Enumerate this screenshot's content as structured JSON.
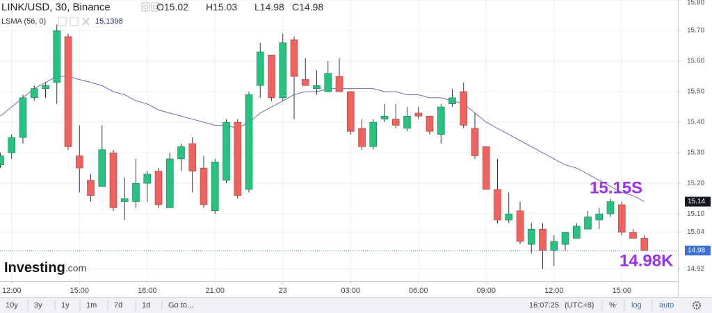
{
  "chart_data": {
    "type": "candlestick",
    "title": "LINK/USD, 30, Binance",
    "ohlc": [
      {
        "label": "O",
        "value": 15.02
      },
      {
        "label": "H",
        "value": 15.03
      },
      {
        "label": "L",
        "value": 14.98
      },
      {
        "label": "C",
        "value": 14.98
      }
    ],
    "categories": [
      null,
      "12:00",
      null,
      null,
      null,
      null,
      null,
      "15:00",
      null,
      null,
      null,
      null,
      null,
      "18:00",
      null,
      null,
      null,
      null,
      null,
      "21:00",
      null,
      null,
      null,
      null,
      null,
      "23",
      null,
      null,
      null,
      null,
      null,
      "03:00",
      null,
      null,
      null,
      null,
      null,
      "06:00",
      null,
      null,
      null,
      null,
      null,
      "09:00",
      null,
      null,
      null,
      null,
      null,
      "12:00",
      null,
      null,
      null,
      null,
      null,
      "15:00",
      null,
      null
    ],
    "open": [
      15.26,
      15.3,
      15.35,
      15.48,
      15.51,
      15.53,
      15.68,
      15.29,
      15.21,
      15.19,
      15.3,
      15.14,
      15.14,
      15.2,
      15.24,
      15.12,
      15.28,
      15.33,
      15.25,
      15.11,
      15.21,
      15.4,
      15.18,
      15.52,
      15.62,
      15.48,
      15.67,
      15.54,
      15.51,
      15.5,
      15.55,
      15.5,
      15.38,
      15.32,
      15.41,
      15.41,
      15.38,
      15.43,
      15.42,
      15.36,
      15.46,
      15.5,
      15.38,
      15.32,
      15.18,
      15.08,
      15.11,
      15.0,
      15.05,
      14.98,
      15.0,
      15.02,
      15.05,
      15.08,
      15.1,
      15.13,
      15.04,
      15.02
    ],
    "high": [
      15.3,
      15.36,
      15.49,
      15.52,
      15.53,
      15.72,
      15.69,
      15.39,
      15.23,
      15.39,
      15.31,
      15.22,
      15.28,
      15.24,
      15.25,
      15.3,
      15.33,
      15.35,
      15.29,
      15.28,
      15.41,
      15.41,
      15.5,
      15.66,
      15.62,
      15.69,
      15.68,
      15.61,
      15.57,
      15.6,
      15.61,
      15.5,
      15.41,
      15.41,
      15.46,
      15.46,
      15.45,
      15.45,
      15.42,
      15.46,
      15.51,
      15.53,
      15.43,
      15.32,
      15.28,
      15.17,
      15.14,
      15.07,
      15.07,
      15.03,
      15.04,
      15.07,
      15.11,
      15.12,
      15.15,
      15.14,
      15.05,
      15.03
    ],
    "low": [
      15.25,
      15.28,
      15.33,
      15.47,
      15.48,
      15.46,
      15.31,
      15.17,
      15.14,
      15.19,
      15.11,
      15.08,
      15.12,
      15.14,
      15.12,
      15.12,
      15.24,
      15.17,
      15.12,
      15.1,
      15.2,
      15.15,
      15.17,
      15.48,
      15.47,
      15.47,
      15.41,
      15.52,
      15.49,
      15.5,
      15.5,
      15.36,
      15.31,
      15.31,
      15.4,
      15.38,
      15.37,
      15.41,
      15.36,
      15.33,
      15.45,
      15.38,
      15.28,
      15.18,
      15.07,
      15.07,
      15.0,
      14.97,
      14.92,
      14.93,
      14.98,
      15.02,
      15.05,
      15.05,
      15.09,
      15.03,
      15.02,
      14.98
    ],
    "close": [
      15.29,
      15.35,
      15.48,
      15.51,
      15.52,
      15.7,
      15.32,
      15.25,
      15.16,
      15.31,
      15.12,
      15.15,
      15.2,
      15.23,
      15.13,
      15.28,
      15.32,
      15.24,
      15.13,
      15.27,
      15.4,
      15.16,
      15.49,
      15.63,
      15.48,
      15.66,
      15.55,
      15.52,
      15.52,
      15.56,
      15.5,
      15.37,
      15.32,
      15.4,
      15.42,
      15.39,
      15.42,
      15.42,
      15.37,
      15.45,
      15.48,
      15.39,
      15.29,
      15.18,
      15.08,
      15.1,
      15.01,
      15.05,
      14.98,
      15.01,
      15.04,
      15.06,
      15.09,
      15.1,
      15.14,
      15.04,
      15.02,
      14.98
    ],
    "up_color": "#26c281",
    "down_color": "#f0625d",
    "series": [
      {
        "name": "LSMA (56, 0)",
        "color": "#6a6cb0",
        "legend_value": 15.1398,
        "values": [
          15.42,
          15.45,
          15.48,
          15.51,
          15.53,
          15.55,
          15.55,
          15.54,
          15.53,
          15.52,
          15.5,
          15.49,
          15.47,
          15.46,
          15.44,
          15.43,
          15.42,
          15.41,
          15.4,
          15.39,
          15.39,
          15.38,
          15.4,
          15.43,
          15.45,
          15.47,
          15.49,
          15.5,
          15.5,
          15.51,
          15.51,
          15.51,
          15.51,
          15.51,
          15.5,
          15.5,
          15.49,
          15.49,
          15.48,
          15.48,
          15.47,
          15.46,
          15.43,
          15.4,
          15.38,
          15.36,
          15.34,
          15.32,
          15.3,
          15.28,
          15.26,
          15.25,
          15.23,
          15.21,
          15.19,
          15.17,
          15.16,
          15.14
        ]
      }
    ],
    "ylim": [
      14.88,
      15.8
    ],
    "yticks": [
      {
        "value": 15.8,
        "label": "15.80"
      },
      {
        "value": 15.7,
        "label": "15.70"
      },
      {
        "value": 15.6,
        "label": "15.60"
      },
      {
        "value": 15.5,
        "label": "15.50"
      },
      {
        "value": 15.4,
        "label": "15.40"
      },
      {
        "value": 15.3,
        "label": "15.30"
      },
      {
        "value": 15.2,
        "label": "15.20"
      },
      {
        "value": 15.1,
        "label": "15.10"
      },
      15.04,
      14.92
    ],
    "grid": true,
    "price_markers": [
      {
        "value": 15.14,
        "color": "#131722"
      },
      {
        "value": 14.98,
        "color": "#3a6fd8"
      }
    ],
    "annotations": [
      "15.15S",
      "14.98K"
    ],
    "annotation_color": "#9b30ff",
    "logo": {
      "name": "Investing",
      "suffix": ".com"
    },
    "toolbar": {
      "ranges": [
        "10y",
        "3y",
        "1y",
        "1m",
        "7d",
        "1d",
        "Go to..."
      ],
      "time": "16:07:25",
      "timezone": "(UTC+8)",
      "options": [
        "%",
        "log",
        "auto"
      ]
    }
  }
}
